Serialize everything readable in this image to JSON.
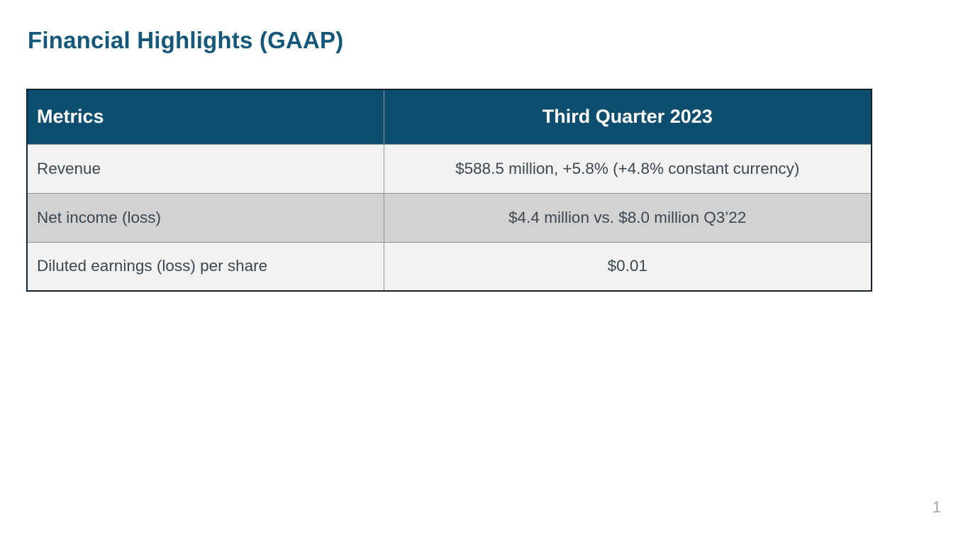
{
  "slide": {
    "title": "Financial Highlights (GAAP)",
    "page_number": "1"
  },
  "table": {
    "columns": [
      {
        "label": "Metrics"
      },
      {
        "label": "Third Quarter 2023"
      }
    ],
    "rows": [
      {
        "metric": "Revenue",
        "value": "$588.5 million, +5.8% (+4.8% constant currency)"
      },
      {
        "metric": "Net income (loss)",
        "value": "$4.4 million vs. $8.0 million Q3’22"
      },
      {
        "metric": "Diluted earnings (loss) per share",
        "value": "$0.01"
      }
    ]
  },
  "colors": {
    "title_text": "#15587a",
    "header_bg": "#0d4e6e",
    "header_text": "#ffffff",
    "row_light_bg": "#f2f2f3",
    "row_dark_bg": "#d2d2d3",
    "cell_text": "#3d474f",
    "outer_border": "#14222e",
    "inner_border": "#8f9499",
    "page_number_text": "#a6a6a6"
  }
}
